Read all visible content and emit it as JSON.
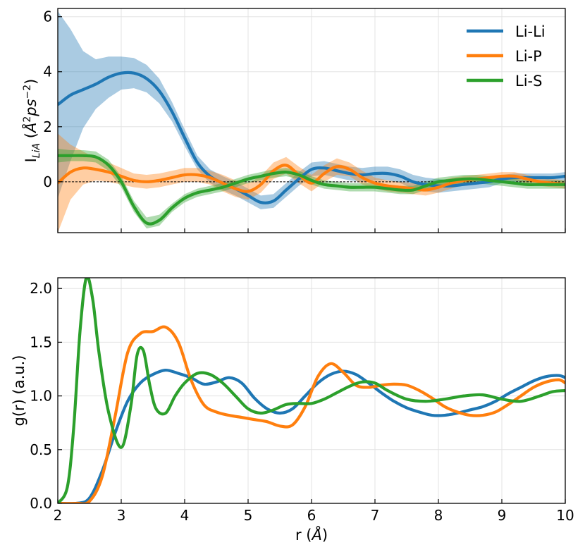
{
  "chart_data": [
    {
      "type": "line",
      "title": "",
      "ylabel": "I_LiA (Å²ps⁻²)",
      "ylabel_parts": {
        "base": "I",
        "sub": "LiA",
        "unit_prefix": " (",
        "A": "Å",
        "sup1": "2",
        "ps": "ps",
        "sup2": "−2",
        "close": ")"
      },
      "xlim": [
        2,
        10
      ],
      "ylim": [
        -1.85,
        6.3
      ],
      "yticks": [
        0,
        2,
        4,
        6
      ],
      "ytick_labels": [
        "0",
        "2",
        "4",
        "6"
      ],
      "xticks": [
        2,
        3,
        4,
        5,
        6,
        7,
        8,
        9,
        10
      ],
      "zero_line": true,
      "legend": {
        "position": "top-right",
        "entries": [
          "Li-Li",
          "Li-P",
          "Li-S"
        ]
      },
      "series": [
        {
          "name": "Li-Li",
          "color": "#1f77b4",
          "x": [
            2.0,
            2.2,
            2.4,
            2.6,
            2.8,
            3.0,
            3.2,
            3.4,
            3.6,
            3.8,
            4.0,
            4.2,
            4.4,
            4.6,
            4.8,
            5.0,
            5.2,
            5.4,
            5.6,
            5.8,
            6.0,
            6.2,
            6.4,
            6.6,
            6.8,
            7.0,
            7.2,
            7.4,
            7.6,
            7.8,
            8.0,
            8.2,
            8.4,
            8.6,
            8.8,
            9.0,
            9.2,
            9.4,
            9.6,
            9.8,
            10.0
          ],
          "y": [
            2.8,
            3.15,
            3.35,
            3.55,
            3.8,
            3.95,
            3.95,
            3.75,
            3.3,
            2.55,
            1.6,
            0.7,
            0.2,
            -0.05,
            -0.25,
            -0.5,
            -0.75,
            -0.7,
            -0.3,
            0.1,
            0.45,
            0.5,
            0.4,
            0.3,
            0.25,
            0.3,
            0.3,
            0.2,
            0.0,
            -0.1,
            -0.15,
            -0.15,
            -0.1,
            -0.05,
            0.0,
            0.1,
            0.15,
            0.15,
            0.15,
            0.15,
            0.2
          ],
          "band": [
            3.4,
            2.4,
            1.4,
            0.9,
            0.75,
            0.6,
            0.55,
            0.5,
            0.45,
            0.35,
            0.3,
            0.25,
            0.25,
            0.25,
            0.25,
            0.25,
            0.25,
            0.25,
            0.25,
            0.25,
            0.25,
            0.25,
            0.25,
            0.25,
            0.25,
            0.25,
            0.25,
            0.25,
            0.25,
            0.25,
            0.25,
            0.2,
            0.2,
            0.2,
            0.2,
            0.15,
            0.15,
            0.15,
            0.15,
            0.15,
            0.15
          ]
        },
        {
          "name": "Li-P",
          "color": "#ff7f0e",
          "x": [
            2.0,
            2.2,
            2.4,
            2.6,
            2.8,
            3.0,
            3.2,
            3.4,
            3.6,
            3.8,
            4.0,
            4.2,
            4.4,
            4.6,
            4.8,
            5.0,
            5.2,
            5.4,
            5.6,
            5.8,
            6.0,
            6.2,
            6.4,
            6.6,
            6.8,
            7.0,
            7.2,
            7.4,
            7.6,
            7.8,
            8.0,
            8.2,
            8.4,
            8.6,
            8.8,
            9.0,
            9.2,
            9.4,
            9.6,
            9.8,
            10.0
          ],
          "y": [
            -0.05,
            0.35,
            0.5,
            0.45,
            0.35,
            0.2,
            0.05,
            0.0,
            0.05,
            0.15,
            0.25,
            0.25,
            0.15,
            -0.05,
            -0.25,
            -0.35,
            -0.1,
            0.4,
            0.6,
            0.25,
            -0.05,
            0.3,
            0.55,
            0.45,
            0.15,
            -0.05,
            -0.15,
            -0.2,
            -0.25,
            -0.3,
            -0.2,
            -0.05,
            0.05,
            0.1,
            0.15,
            0.2,
            0.2,
            0.1,
            0.0,
            -0.05,
            -0.1
          ],
          "band": [
            1.8,
            1.0,
            0.6,
            0.4,
            0.35,
            0.3,
            0.25,
            0.25,
            0.25,
            0.25,
            0.25,
            0.25,
            0.25,
            0.3,
            0.3,
            0.3,
            0.3,
            0.3,
            0.3,
            0.3,
            0.3,
            0.3,
            0.3,
            0.25,
            0.25,
            0.2,
            0.2,
            0.2,
            0.2,
            0.2,
            0.2,
            0.2,
            0.15,
            0.15,
            0.15,
            0.15,
            0.15,
            0.15,
            0.15,
            0.15,
            0.15
          ]
        },
        {
          "name": "Li-S",
          "color": "#2ca02c",
          "x": [
            2.0,
            2.2,
            2.4,
            2.6,
            2.8,
            3.0,
            3.2,
            3.4,
            3.6,
            3.8,
            4.0,
            4.2,
            4.4,
            4.6,
            4.8,
            5.0,
            5.2,
            5.4,
            5.6,
            5.8,
            6.0,
            6.2,
            6.4,
            6.6,
            6.8,
            7.0,
            7.2,
            7.4,
            7.6,
            7.8,
            8.0,
            8.2,
            8.4,
            8.6,
            8.8,
            9.0,
            9.2,
            9.4,
            9.6,
            9.8,
            10.0
          ],
          "y": [
            0.95,
            0.95,
            0.95,
            0.9,
            0.6,
            0.0,
            -0.9,
            -1.5,
            -1.4,
            -0.95,
            -0.6,
            -0.4,
            -0.3,
            -0.2,
            -0.05,
            0.1,
            0.2,
            0.3,
            0.35,
            0.25,
            0.05,
            -0.1,
            -0.15,
            -0.2,
            -0.2,
            -0.2,
            -0.25,
            -0.3,
            -0.3,
            -0.15,
            0.0,
            0.05,
            0.1,
            0.1,
            0.05,
            0.0,
            -0.05,
            -0.1,
            -0.1,
            -0.1,
            -0.1
          ],
          "band": [
            0.25,
            0.2,
            0.2,
            0.2,
            0.2,
            0.2,
            0.2,
            0.2,
            0.2,
            0.15,
            0.15,
            0.15,
            0.15,
            0.15,
            0.15,
            0.15,
            0.15,
            0.15,
            0.15,
            0.15,
            0.15,
            0.15,
            0.15,
            0.15,
            0.15,
            0.15,
            0.15,
            0.15,
            0.15,
            0.15,
            0.15,
            0.15,
            0.15,
            0.15,
            0.15,
            0.15,
            0.15,
            0.15,
            0.15,
            0.15,
            0.15
          ]
        }
      ]
    },
    {
      "type": "line",
      "title": "",
      "xlabel": "r (Å)",
      "xlabel_parts": {
        "prefix": "r (",
        "unit": "Å",
        "suffix": ")"
      },
      "ylabel": "g(r) (a.u.)",
      "xlim": [
        2,
        10
      ],
      "ylim": [
        0.0,
        2.1
      ],
      "yticks": [
        0.0,
        0.5,
        1.0,
        1.5,
        2.0
      ],
      "ytick_labels": [
        "0.0",
        "0.5",
        "1.0",
        "1.5",
        "2.0"
      ],
      "xticks": [
        2,
        3,
        4,
        5,
        6,
        7,
        8,
        9,
        10
      ],
      "xtick_labels": [
        "2",
        "3",
        "4",
        "5",
        "6",
        "7",
        "8",
        "9",
        "10"
      ],
      "series": [
        {
          "name": "Li-Li",
          "color": "#1f77b4",
          "x": [
            2.0,
            2.3,
            2.5,
            2.7,
            2.9,
            3.1,
            3.3,
            3.5,
            3.7,
            3.9,
            4.1,
            4.3,
            4.5,
            4.7,
            4.9,
            5.1,
            5.3,
            5.5,
            5.7,
            5.9,
            6.1,
            6.3,
            6.5,
            6.7,
            6.9,
            7.1,
            7.3,
            7.5,
            7.7,
            7.9,
            8.1,
            8.3,
            8.5,
            8.7,
            8.9,
            9.1,
            9.3,
            9.5,
            9.7,
            9.9,
            10.0
          ],
          "y": [
            0.0,
            0.0,
            0.05,
            0.3,
            0.65,
            0.95,
            1.12,
            1.2,
            1.24,
            1.21,
            1.17,
            1.11,
            1.13,
            1.17,
            1.12,
            0.98,
            0.88,
            0.84,
            0.88,
            1.0,
            1.12,
            1.2,
            1.23,
            1.2,
            1.12,
            1.03,
            0.95,
            0.89,
            0.85,
            0.82,
            0.82,
            0.84,
            0.87,
            0.9,
            0.95,
            1.02,
            1.08,
            1.14,
            1.18,
            1.19,
            1.17
          ]
        },
        {
          "name": "Li-P",
          "color": "#ff7f0e",
          "x": [
            2.0,
            2.3,
            2.5,
            2.7,
            2.9,
            3.1,
            3.3,
            3.5,
            3.7,
            3.9,
            4.1,
            4.3,
            4.5,
            4.7,
            4.9,
            5.1,
            5.3,
            5.5,
            5.7,
            5.9,
            6.1,
            6.3,
            6.5,
            6.7,
            6.9,
            7.1,
            7.3,
            7.5,
            7.7,
            7.9,
            8.1,
            8.3,
            8.5,
            8.7,
            8.9,
            9.1,
            9.3,
            9.5,
            9.7,
            9.9,
            10.0
          ],
          "y": [
            0.0,
            0.0,
            0.02,
            0.25,
            0.8,
            1.4,
            1.58,
            1.6,
            1.64,
            1.5,
            1.15,
            0.92,
            0.85,
            0.82,
            0.8,
            0.78,
            0.76,
            0.72,
            0.73,
            0.9,
            1.18,
            1.3,
            1.22,
            1.1,
            1.08,
            1.1,
            1.11,
            1.1,
            1.05,
            0.98,
            0.9,
            0.85,
            0.82,
            0.82,
            0.85,
            0.92,
            1.0,
            1.08,
            1.13,
            1.15,
            1.12
          ]
        },
        {
          "name": "Li-S",
          "color": "#2ca02c",
          "x": [
            2.0,
            2.15,
            2.25,
            2.35,
            2.45,
            2.55,
            2.65,
            2.8,
            3.0,
            3.15,
            3.25,
            3.35,
            3.45,
            3.55,
            3.7,
            3.85,
            4.0,
            4.2,
            4.4,
            4.6,
            4.8,
            5.0,
            5.2,
            5.4,
            5.6,
            5.8,
            6.0,
            6.2,
            6.4,
            6.6,
            6.8,
            7.0,
            7.2,
            7.5,
            7.8,
            8.1,
            8.4,
            8.7,
            9.0,
            9.3,
            9.6,
            9.8,
            10.0
          ],
          "y": [
            0.0,
            0.15,
            0.7,
            1.6,
            2.1,
            1.9,
            1.4,
            0.85,
            0.52,
            0.9,
            1.38,
            1.42,
            1.1,
            0.88,
            0.84,
            1.0,
            1.12,
            1.21,
            1.2,
            1.12,
            1.0,
            0.88,
            0.84,
            0.87,
            0.92,
            0.93,
            0.93,
            0.97,
            1.03,
            1.09,
            1.13,
            1.12,
            1.05,
            0.97,
            0.95,
            0.97,
            1.0,
            1.01,
            0.97,
            0.95,
            1.0,
            1.04,
            1.05
          ]
        }
      ]
    }
  ]
}
